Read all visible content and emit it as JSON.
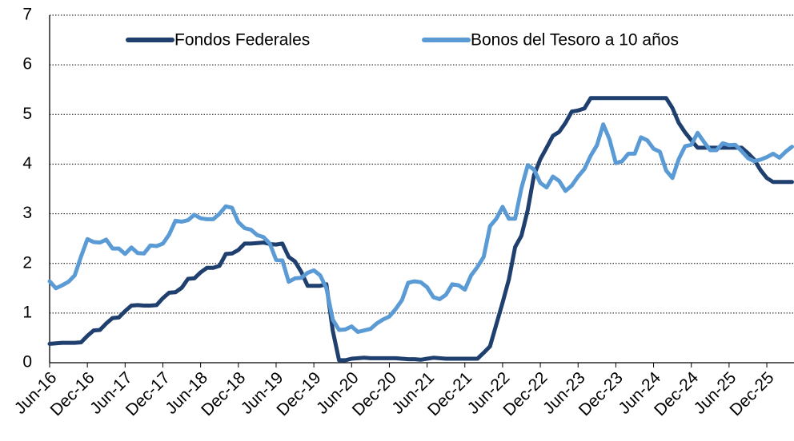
{
  "chart_data": {
    "type": "line",
    "categories": [
      "Jun-16",
      null,
      null,
      null,
      null,
      null,
      "Dec-16",
      null,
      null,
      null,
      null,
      null,
      "Jun-17",
      null,
      null,
      null,
      null,
      null,
      "Dec-17",
      null,
      null,
      null,
      null,
      null,
      "Jun-18",
      null,
      null,
      null,
      null,
      null,
      "Dec-18",
      null,
      null,
      null,
      null,
      null,
      "Jun-19",
      null,
      null,
      null,
      null,
      null,
      "Dec-19",
      null,
      null,
      null,
      null,
      null,
      "Jun-20",
      null,
      null,
      null,
      null,
      null,
      "Dec-20",
      null,
      null,
      null,
      null,
      null,
      "Jun-21",
      null,
      null,
      null,
      null,
      null,
      "Dec-21",
      null,
      null,
      null,
      null,
      null,
      "Jun-22",
      null,
      null,
      null,
      null,
      null,
      "Dec-22",
      null,
      null,
      null,
      null,
      null,
      "Jun-23",
      null,
      null,
      null,
      null,
      null,
      "Dec-23",
      null,
      null,
      null,
      null,
      null,
      "Jun-24",
      null,
      null,
      null,
      null,
      null,
      "Dec-24",
      null,
      null,
      null,
      null,
      null,
      "Jun-25",
      null,
      null,
      null,
      null,
      null,
      "Dec-25",
      null,
      null,
      null,
      null
    ],
    "series": [
      {
        "name": "Fondos Federales",
        "color": "#1f3f6e",
        "values": [
          0.38,
          0.39,
          0.4,
          0.4,
          0.4,
          0.41,
          0.54,
          0.65,
          0.66,
          0.79,
          0.9,
          0.91,
          1.04,
          1.15,
          1.16,
          1.15,
          1.15,
          1.16,
          1.3,
          1.41,
          1.42,
          1.51,
          1.69,
          1.7,
          1.82,
          1.91,
          1.91,
          1.95,
          2.19,
          2.2,
          2.27,
          2.4,
          2.4,
          2.41,
          2.42,
          2.39,
          2.38,
          2.4,
          2.13,
          2.04,
          1.83,
          1.55,
          1.55,
          1.55,
          1.58,
          0.65,
          0.05,
          0.05,
          0.08,
          0.09,
          0.1,
          0.09,
          0.09,
          0.09,
          0.09,
          0.09,
          0.08,
          0.07,
          0.07,
          0.06,
          0.08,
          0.1,
          0.09,
          0.08,
          0.08,
          0.08,
          0.08,
          0.08,
          0.08,
          0.2,
          0.33,
          0.77,
          1.21,
          1.68,
          2.33,
          2.56,
          3.08,
          3.78,
          4.1,
          4.33,
          4.57,
          4.65,
          4.83,
          5.06,
          5.08,
          5.12,
          5.33,
          5.33,
          5.33,
          5.33,
          5.33,
          5.33,
          5.33,
          5.33,
          5.33,
          5.33,
          5.33,
          5.33,
          5.33,
          5.13,
          4.83,
          4.64,
          4.48,
          4.33,
          4.33,
          4.33,
          4.33,
          4.33,
          4.33,
          4.33,
          4.33,
          4.22,
          4.09,
          3.88,
          3.72,
          3.64,
          3.64,
          3.64,
          3.64
        ]
      },
      {
        "name": "Bonos del Tesoro a 10 años",
        "color": "#5b9bd5",
        "values": [
          1.64,
          1.5,
          1.56,
          1.63,
          1.76,
          2.14,
          2.49,
          2.43,
          2.42,
          2.48,
          2.3,
          2.3,
          2.19,
          2.32,
          2.21,
          2.2,
          2.36,
          2.35,
          2.4,
          2.58,
          2.86,
          2.84,
          2.87,
          2.98,
          2.91,
          2.89,
          2.89,
          3.0,
          3.15,
          3.12,
          2.83,
          2.71,
          2.68,
          2.57,
          2.53,
          2.4,
          2.07,
          2.06,
          1.63,
          1.7,
          1.71,
          1.81,
          1.86,
          1.76,
          1.5,
          0.87,
          0.66,
          0.67,
          0.73,
          0.62,
          0.65,
          0.68,
          0.79,
          0.87,
          0.93,
          1.08,
          1.26,
          1.61,
          1.64,
          1.62,
          1.52,
          1.32,
          1.28,
          1.37,
          1.58,
          1.56,
          1.47,
          1.76,
          1.93,
          2.13,
          2.75,
          2.9,
          3.14,
          2.9,
          2.9,
          3.52,
          3.98,
          3.89,
          3.62,
          3.53,
          3.75,
          3.66,
          3.46,
          3.57,
          3.75,
          3.9,
          4.17,
          4.38,
          4.8,
          4.5,
          4.02,
          4.06,
          4.21,
          4.21,
          4.54,
          4.48,
          4.31,
          4.25,
          3.87,
          3.72,
          4.1,
          4.36,
          4.39,
          4.63,
          4.45,
          4.28,
          4.28,
          4.42,
          4.38,
          4.39,
          4.26,
          4.12,
          4.06,
          4.09,
          4.14,
          4.21,
          4.13,
          4.25,
          4.35
        ]
      }
    ],
    "ylim": [
      0,
      7
    ],
    "yticks": [
      0,
      1,
      2,
      3,
      4,
      5,
      6,
      7
    ],
    "grid": true,
    "legend": "top"
  }
}
